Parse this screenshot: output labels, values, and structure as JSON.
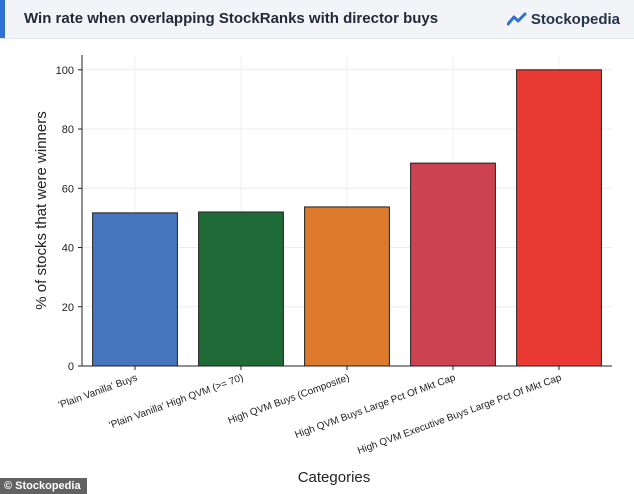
{
  "header": {
    "title": "Win rate when overlapping StockRanks with director buys"
  },
  "brand": {
    "name": "Stockopedia"
  },
  "footer": {
    "credit": "© Stockopedia"
  },
  "colors": {
    "header_bg": "#f3f4f8",
    "accent": "#2f6fd1"
  },
  "chart_data": {
    "type": "bar",
    "title": "",
    "xlabel": "Categories",
    "ylabel": "% of stocks that were winners",
    "categories": [
      "'Plain Vanilla' Buys",
      "'Plain Vanilla' High QVM (>= 70)",
      "High QVM Buys (Composite)",
      "High QVM Buys Large Pct Of Mkt Cap",
      "High QVM Executive Buys Large Pct Of Mkt Cap"
    ],
    "values": [
      51.7,
      52,
      53.7,
      68.5,
      100
    ],
    "colors": [
      "#4575bd",
      "#1f6b37",
      "#dd7a2c",
      "#cc4250",
      "#e83a32"
    ],
    "ylim": [
      0,
      105
    ],
    "yticks": [
      0,
      20,
      40,
      60,
      80,
      100
    ],
    "grid": true
  }
}
